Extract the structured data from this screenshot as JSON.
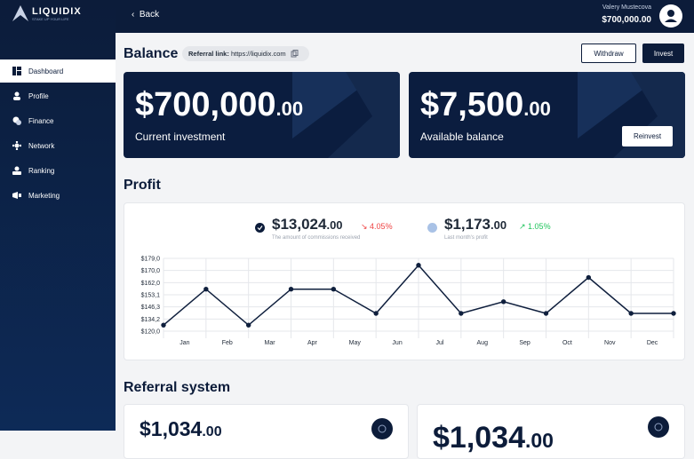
{
  "sidebar": {
    "logo": "LIQUIDIX",
    "tagline": "STAKE UP YOUR LIFE",
    "nav": [
      "Dashboard",
      "Profile",
      "Finance",
      "Network",
      "Ranking",
      "Marketing"
    ]
  },
  "topbar": {
    "back": "Back",
    "user_name": "Valery Mustecova",
    "user_balance": "$700,000.00"
  },
  "balance": {
    "title": "Balance",
    "referral_label": "Referral link:",
    "referral_url": "https://liquidix.com",
    "withdraw": "Withdraw",
    "invest": "Invest",
    "cards": [
      {
        "amount": "$700,000",
        "cents": ".00",
        "label": "Current investment"
      },
      {
        "amount": "$7,500",
        "cents": ".00",
        "label": "Available balance"
      }
    ],
    "reinvest": "Reinvest"
  },
  "profit": {
    "title": "Profit",
    "stats": [
      {
        "amount": "$13,024",
        "cents": ".00",
        "change": "4.05%",
        "caption": "The amount of commissions received"
      },
      {
        "amount": "$1,173",
        "cents": ".00",
        "change": "1.05%",
        "caption": "Last month's profit"
      }
    ]
  },
  "chart_data": {
    "type": "line",
    "categories": [
      "Jan",
      "Feb",
      "Mar",
      "Apr",
      "May",
      "Jun",
      "Jul",
      "Aug",
      "Sep",
      "Oct",
      "Nov",
      "Dec",
      null
    ],
    "values": [
      127.1,
      157.2,
      127.1,
      157.2,
      157.2,
      139.8,
      173.9,
      139.8,
      149.2,
      139.8,
      165.4,
      139.8,
      139.8
    ],
    "color": "#0f1f3d",
    "ylim": [
      120,
      179
    ],
    "yticks": [
      {
        "value": 120,
        "label": "$120,0"
      },
      {
        "value": 134.2,
        "label": "$134,2"
      },
      {
        "value": 146.3,
        "label": "$146,3"
      },
      {
        "value": 153.1,
        "label": "$153,1"
      },
      {
        "value": 162,
        "label": "$162,0"
      },
      {
        "value": 170,
        "label": "$170,0"
      },
      {
        "value": 179,
        "label": "$179,0"
      }
    ],
    "grid": true
  },
  "referral": {
    "title": "Referral system",
    "cards": [
      {
        "amount": "$1,034",
        "cents": ".00"
      },
      {
        "amount": "$1,034",
        "cents": ".00"
      }
    ]
  }
}
